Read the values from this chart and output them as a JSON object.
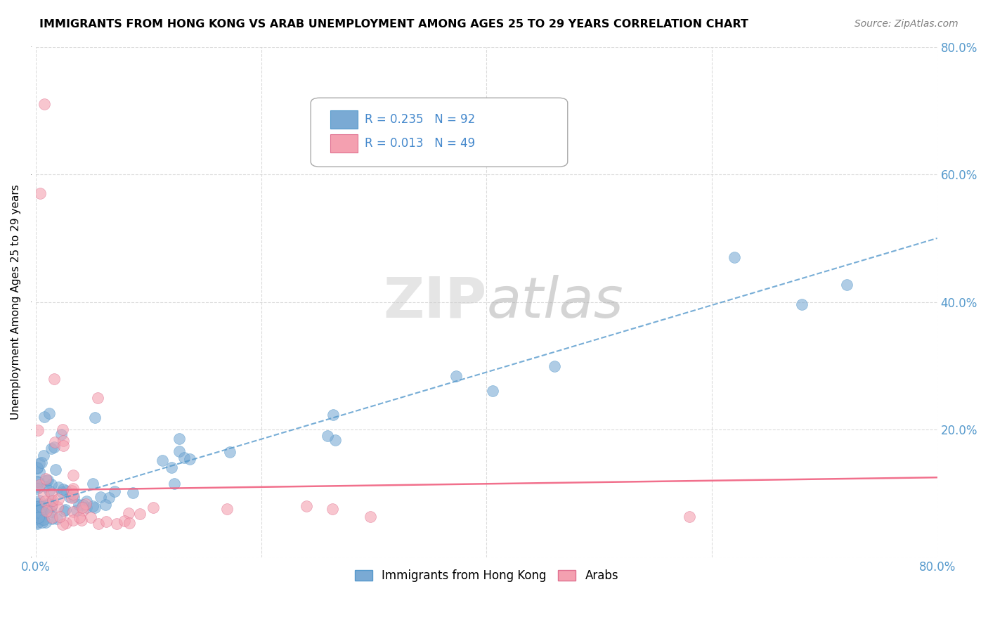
{
  "title": "IMMIGRANTS FROM HONG KONG VS ARAB UNEMPLOYMENT AMONG AGES 25 TO 29 YEARS CORRELATION CHART",
  "source": "Source: ZipAtlas.com",
  "ylabel": "Unemployment Among Ages 25 to 29 years",
  "legend1_label": "Immigrants from Hong Kong",
  "legend2_label": "Arabs",
  "r1": 0.235,
  "n1": 92,
  "r2": 0.013,
  "n2": 49,
  "blue_color": "#7aaad4",
  "pink_color": "#f4a0b0",
  "blue_line_color": "#5599cc",
  "pink_line_color": "#f06080",
  "grid_color": "#cccccc",
  "background_color": "#ffffff"
}
